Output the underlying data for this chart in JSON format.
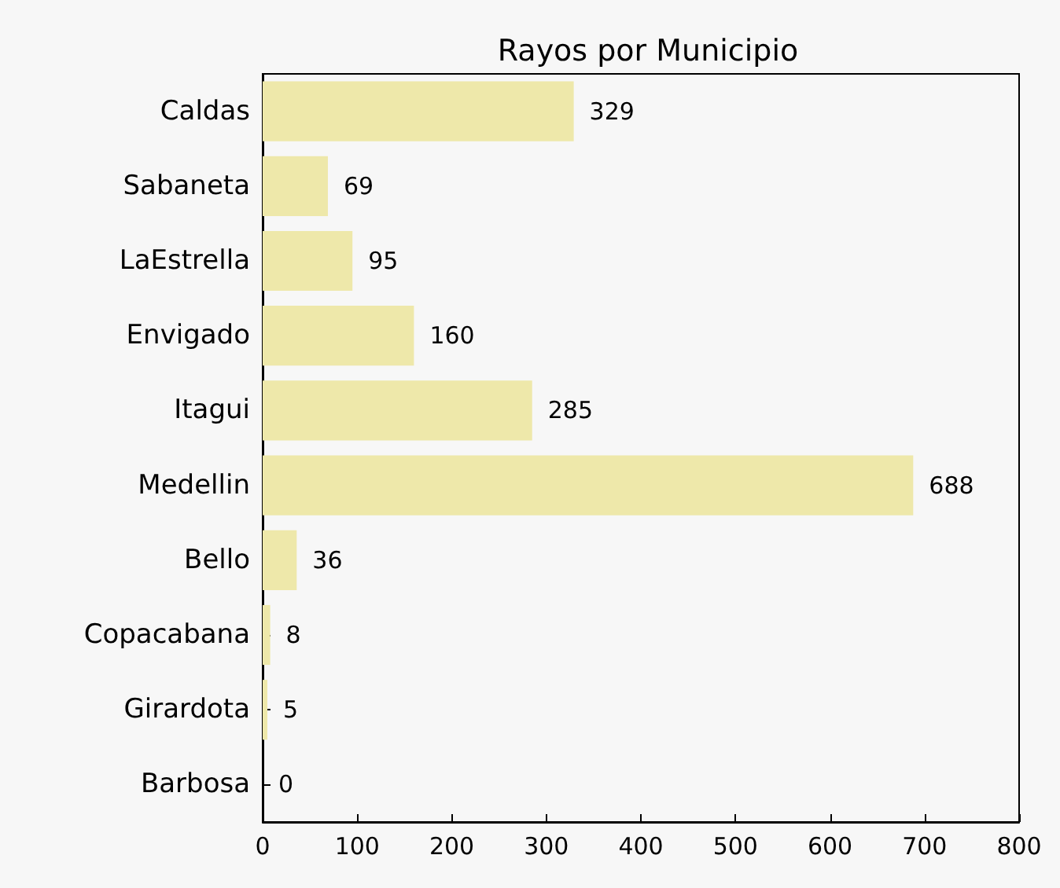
{
  "chart_data": {
    "type": "bar",
    "orientation": "horizontal",
    "title": "Rayos por Municipio",
    "categories": [
      "Caldas",
      "Sabaneta",
      "LaEstrella",
      "Envigado",
      "Itagui",
      "Medellin",
      "Bello",
      "Copacabana",
      "Girardota",
      "Barbosa"
    ],
    "values": [
      329,
      69,
      95,
      160,
      285,
      688,
      36,
      8,
      5,
      0
    ],
    "color": "#eee8aa",
    "data_labels": true,
    "grid": false,
    "xlim": [
      0,
      800
    ],
    "xticks": [
      0,
      100,
      200,
      300,
      400,
      500,
      600,
      700,
      800
    ]
  }
}
